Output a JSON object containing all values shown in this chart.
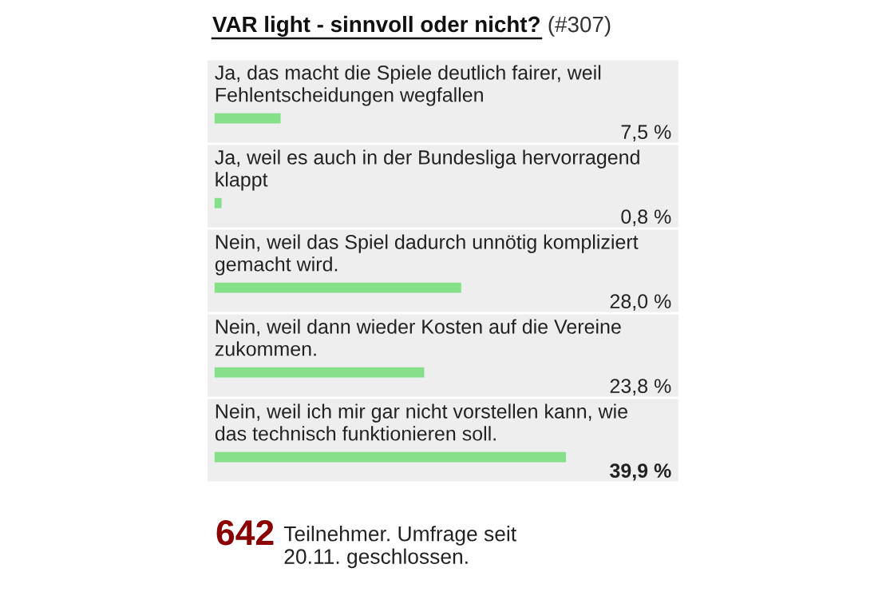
{
  "chart_data": {
    "type": "bar",
    "orientation": "horizontal",
    "title": "VAR light - sinnvoll oder nicht?",
    "subtitle": "(#307)",
    "categories": [
      "Ja, das macht die Spiele deutlich fairer, weil Fehlentscheidungen wegfallen",
      "Ja, weil es auch in der Bundesliga hervorragend klappt",
      "Nein, weil das Spiel dadurch unnötig kompliziert gemacht wird.",
      "Nein, weil dann wieder Kosten auf die Vereine zukommen.",
      "Nein, weil ich mir gar nicht vorstellen kann, wie das technisch funktionieren soll."
    ],
    "values": [
      7.5,
      0.8,
      28.0,
      23.8,
      39.9
    ],
    "value_labels": [
      "7,5 %",
      "0,8 %",
      "28,0 %",
      "23,8 %",
      "39,9 %"
    ],
    "color": "#86e08a",
    "annotations": [
      "642",
      "Teilnehmer. Umfrage seit 20.11. geschlossen."
    ]
  }
}
